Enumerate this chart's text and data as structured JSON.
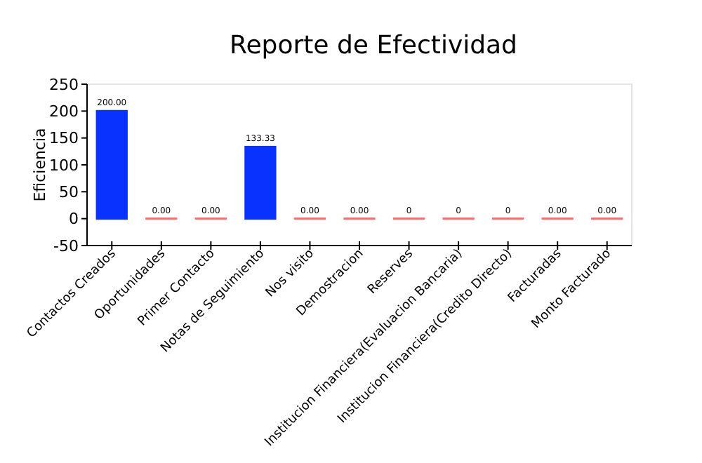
{
  "chart_data": {
    "type": "bar",
    "title": "Reporte de Efectividad",
    "ylabel": "Eficiencia",
    "categories": [
      "Contactos Creados",
      "Oportunidades",
      "Primer Contacto",
      "Notas de Seguimiento",
      "Nos visito",
      "Demostracion",
      "Reserves",
      "Institucion Financiera(Evaluacion Bancaria)",
      "Institucion Financiera(Credito Directo)",
      "Facturadas",
      "Monto Facturado"
    ],
    "values": [
      200,
      0,
      0,
      133.33,
      0,
      0,
      0,
      0,
      0,
      0,
      0
    ],
    "colors": [
      "#0a32ff",
      "#ff6b6b",
      "#ff6b6b",
      "#0a32ff",
      "#ff6b6b",
      "#ff6b6b",
      "#ff6b6b",
      "#ff6b6b",
      "#ff6b6b",
      "#ff6b6b",
      "#ff6b6b"
    ],
    "value_labels": [
      "200.00",
      "0.00",
      "0.00",
      "133.33",
      "0.00",
      "0.00",
      "0",
      "0",
      "0",
      "0.00",
      "0.00"
    ],
    "ylim": [
      -50,
      250
    ],
    "yticks": [
      -50,
      0,
      50,
      100,
      150,
      200,
      250
    ]
  }
}
